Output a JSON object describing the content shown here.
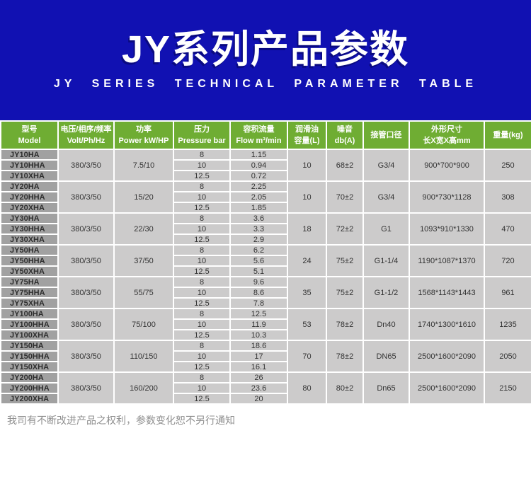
{
  "header": {
    "title": "JY系列产品参数",
    "subtitle": "JY SERIES TECHNICAL PARAMETER TABLE",
    "background_color": "#1111b2"
  },
  "table": {
    "header_background_color": "#6fad33",
    "model_cell_color": "#a1a1a1",
    "data_cell_color": "#cccbcb",
    "columns": [
      {
        "line1": "型号",
        "line2": "Model"
      },
      {
        "line1": "电压/相序/频率",
        "line2": "Volt/Ph/Hz"
      },
      {
        "line1": "功率",
        "line2": "Power kW/HP"
      },
      {
        "line1": "压力",
        "line2": "Pressure bar"
      },
      {
        "line1": "容积流量",
        "line2": "Flow m³/min"
      },
      {
        "line1": "润滑油",
        "line2": "容量(L)"
      },
      {
        "line1": "噪音",
        "line2": "db(A)"
      },
      {
        "line1": "接管口径",
        "line2": ""
      },
      {
        "line1": "外形尺寸",
        "line2": "长X宽X高mm"
      },
      {
        "line1": "重量(kg)",
        "line2": ""
      }
    ],
    "groups": [
      {
        "models": [
          "JY10HA",
          "JY10HHA",
          "JY10XHA"
        ],
        "voltage": "380/3/50",
        "power": "7.5/10",
        "pressure": [
          "8",
          "10",
          "12.5"
        ],
        "flow": [
          "1.15",
          "0.94",
          "0.72"
        ],
        "oil": "10",
        "noise": "68±2",
        "pipe": "G3/4",
        "dimensions": "900*700*900",
        "weight": "250"
      },
      {
        "models": [
          "JY20HA",
          "JY20HHA",
          "JY20XHA"
        ],
        "voltage": "380/3/50",
        "power": "15/20",
        "pressure": [
          "8",
          "10",
          "12.5"
        ],
        "flow": [
          "2.25",
          "2.05",
          "1.85"
        ],
        "oil": "10",
        "noise": "70±2",
        "pipe": "G3/4",
        "dimensions": "900*730*1128",
        "weight": "308"
      },
      {
        "models": [
          "JY30HA",
          "JY30HHA",
          "JY30XHA"
        ],
        "voltage": "380/3/50",
        "power": "22/30",
        "pressure": [
          "8",
          "10",
          "12.5"
        ],
        "flow": [
          "3.6",
          "3.3",
          "2.9"
        ],
        "oil": "18",
        "noise": "72±2",
        "pipe": "G1",
        "dimensions": "1093*910*1330",
        "weight": "470"
      },
      {
        "models": [
          "JY50HA",
          "JY50HHA",
          "JY50XHA"
        ],
        "voltage": "380/3/50",
        "power": "37/50",
        "pressure": [
          "8",
          "10",
          "12.5"
        ],
        "flow": [
          "6.2",
          "5.6",
          "5.1"
        ],
        "oil": "24",
        "noise": "75±2",
        "pipe": "G1-1/4",
        "dimensions": "1190*1087*1370",
        "weight": "720"
      },
      {
        "models": [
          "JY75HA",
          "JY75HHA",
          "JY75XHA"
        ],
        "voltage": "380/3/50",
        "power": "55/75",
        "pressure": [
          "8",
          "10",
          "12.5"
        ],
        "flow": [
          "9.6",
          "8.6",
          "7.8"
        ],
        "oil": "35",
        "noise": "75±2",
        "pipe": "G1-1/2",
        "dimensions": "1568*1143*1443",
        "weight": "961"
      },
      {
        "models": [
          "JY100HA",
          "JY100HHA",
          "JY100XHA"
        ],
        "voltage": "380/3/50",
        "power": "75/100",
        "pressure": [
          "8",
          "10",
          "12.5"
        ],
        "flow": [
          "12.5",
          "11.9",
          "10.3"
        ],
        "oil": "53",
        "noise": "78±2",
        "pipe": "Dn40",
        "dimensions": "1740*1300*1610",
        "weight": "1235"
      },
      {
        "models": [
          "JY150HA",
          "JY150HHA",
          "JY150XHA"
        ],
        "voltage": "380/3/50",
        "power": "110/150",
        "pressure": [
          "8",
          "10",
          "12.5"
        ],
        "flow": [
          "18.6",
          "17",
          "16.1"
        ],
        "oil": "70",
        "noise": "78±2",
        "pipe": "DN65",
        "dimensions": "2500*1600*2090",
        "weight": "2050"
      },
      {
        "models": [
          "JY200HA",
          "JY200HHA",
          "JY200XHA"
        ],
        "voltage": "380/3/50",
        "power": "160/200",
        "pressure": [
          "8",
          "10",
          "12.5"
        ],
        "flow": [
          "26",
          "23.6",
          "20"
        ],
        "oil": "80",
        "noise": "80±2",
        "pipe": "Dn65",
        "dimensions": "2500*1600*2090",
        "weight": "2150"
      }
    ]
  },
  "footer": {
    "note": "我司有不断改进产品之权利，参数变化恕不另行通知"
  }
}
